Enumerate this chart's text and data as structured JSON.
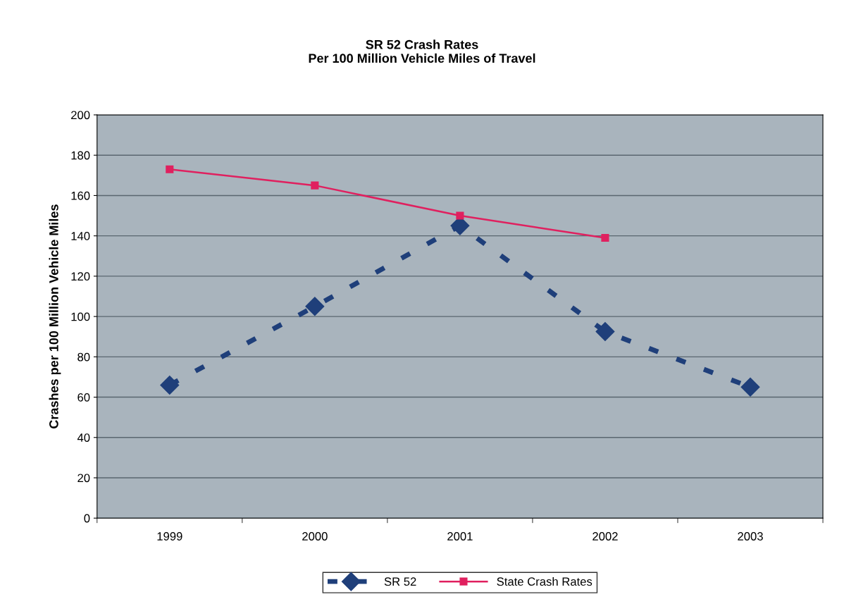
{
  "chart_data": {
    "type": "line",
    "title": "SR 52 Crash Rates\nPer 100 Million Vehicle Miles of Travel",
    "ylabel": "Crashes per 100 Million Vehicle Miles",
    "categories": [
      "1999",
      "2000",
      "2001",
      "2002",
      "2003"
    ],
    "series": [
      {
        "name": "SR 52",
        "color": "#1f3f7a",
        "values": [
          66,
          105,
          145,
          92.5,
          65
        ],
        "marker": "diamond",
        "line_style": "dashed"
      },
      {
        "name": "State Crash Rates",
        "color": "#e0205f",
        "values": [
          173,
          165,
          150,
          139,
          null
        ],
        "marker": "square",
        "line_style": "solid"
      }
    ],
    "ylim": [
      0,
      200
    ],
    "yticks": [
      0,
      20,
      40,
      60,
      80,
      100,
      120,
      140,
      160,
      180,
      200
    ],
    "grid": "y",
    "legend": "bottom"
  }
}
